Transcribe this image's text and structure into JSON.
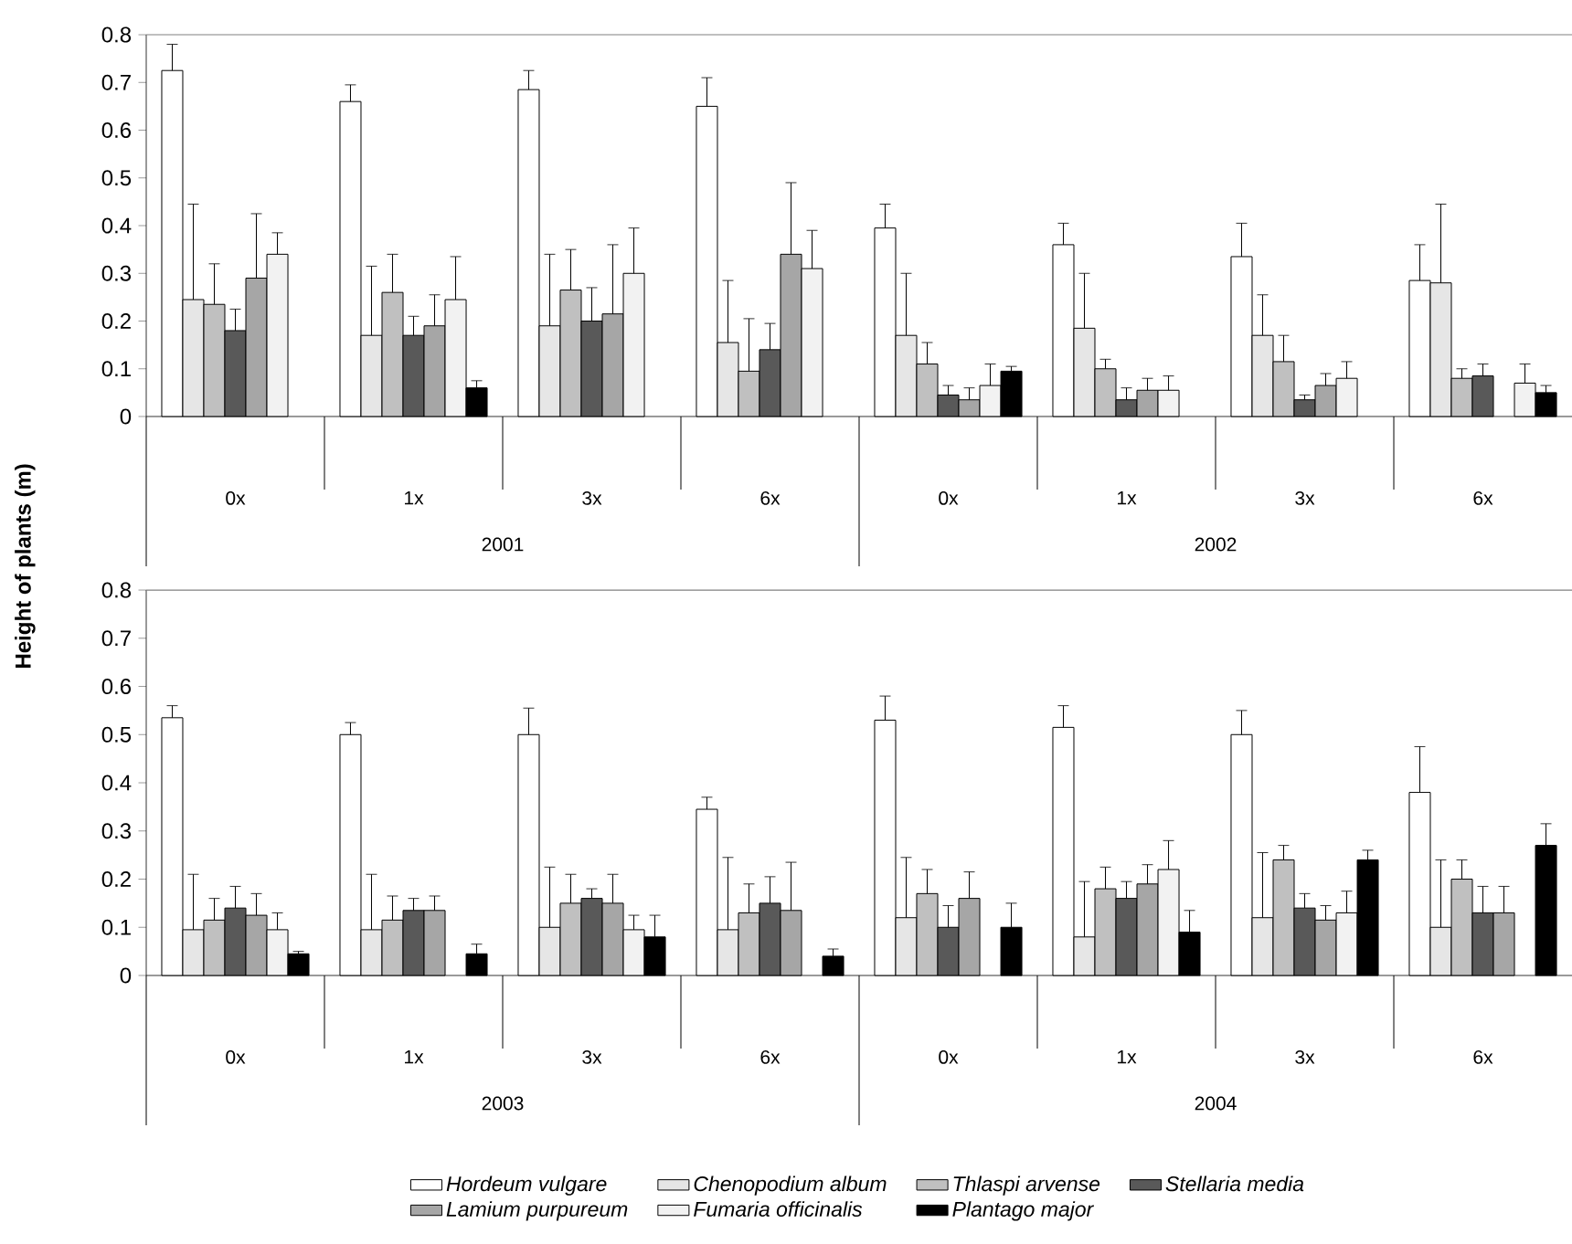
{
  "chart_data": [
    {
      "type": "bar",
      "ylabel": "Height of plants (m)",
      "categories": [
        "0x",
        "1x",
        "3x",
        "6x",
        "0x",
        "1x",
        "3x",
        "6x"
      ],
      "annotations": [
        "2001",
        "2002"
      ],
      "ylim": [
        0,
        0.8
      ],
      "yticks": [
        0,
        0.1,
        0.2,
        0.3,
        0.4,
        0.5,
        0.6,
        0.7,
        0.8
      ],
      "series": [
        {
          "color": "#ffffff",
          "values": [
            0.725,
            0.66,
            0.685,
            0.65,
            0.395,
            0.36,
            0.335,
            0.285
          ],
          "errors": [
            [
              0.725,
              0.78
            ],
            [
              0.66,
              0.695
            ],
            [
              0.685,
              0.725
            ],
            [
              0.65,
              0.71
            ],
            [
              0.395,
              0.445
            ],
            [
              0.36,
              0.405
            ],
            [
              0.335,
              0.405
            ],
            [
              0.285,
              0.36
            ]
          ]
        },
        {
          "color": "#e6e6e6",
          "values": [
            0.245,
            0.17,
            0.19,
            0.155,
            0.17,
            0.185,
            0.17,
            0.28
          ],
          "errors": [
            [
              0.245,
              0.445
            ],
            [
              0.17,
              0.315
            ],
            [
              0.19,
              0.34
            ],
            [
              0.155,
              0.285
            ],
            [
              0.17,
              0.3
            ],
            [
              0.185,
              0.3
            ],
            [
              0.17,
              0.255
            ],
            [
              0.28,
              0.445
            ]
          ]
        },
        {
          "color": "#c0c0c0",
          "values": [
            0.235,
            0.26,
            0.265,
            0.095,
            0.11,
            0.1,
            0.115,
            0.08
          ],
          "errors": [
            [
              0.235,
              0.32
            ],
            [
              0.26,
              0.34
            ],
            [
              0.265,
              0.35
            ],
            [
              0.095,
              0.205
            ],
            [
              0.11,
              0.155
            ],
            [
              0.1,
              0.12
            ],
            [
              0.115,
              0.17
            ],
            [
              0.08,
              0.1
            ]
          ]
        },
        {
          "color": "#595959",
          "values": [
            0.18,
            0.17,
            0.2,
            0.14,
            0.045,
            0.035,
            0.035,
            0.085
          ],
          "errors": [
            [
              0.18,
              0.225
            ],
            [
              0.17,
              0.21
            ],
            [
              0.2,
              0.27
            ],
            [
              0.14,
              0.195
            ],
            [
              0.045,
              0.065
            ],
            [
              0.035,
              0.06
            ],
            [
              0.035,
              0.045
            ],
            [
              0.085,
              0.11
            ]
          ]
        },
        {
          "color": "#a6a6a6",
          "values": [
            0.29,
            0.19,
            0.215,
            0.34,
            0.035,
            0.055,
            0.065,
            null
          ],
          "errors": [
            [
              0.29,
              0.425
            ],
            [
              0.19,
              0.255
            ],
            [
              0.215,
              0.36
            ],
            [
              0.34,
              0.49
            ],
            [
              0.035,
              0.06
            ],
            [
              0.055,
              0.08
            ],
            [
              0.065,
              0.09
            ],
            null
          ]
        },
        {
          "color": "#f2f2f2",
          "values": [
            0.34,
            0.245,
            0.3,
            0.31,
            0.065,
            0.055,
            0.08,
            0.07
          ],
          "errors": [
            [
              0.34,
              0.385
            ],
            [
              0.245,
              0.335
            ],
            [
              0.3,
              0.395
            ],
            [
              0.31,
              0.39
            ],
            [
              0.065,
              0.11
            ],
            [
              0.055,
              0.085
            ],
            [
              0.08,
              0.115
            ],
            [
              0.07,
              0.11
            ]
          ]
        },
        {
          "color": "#000000",
          "values": [
            null,
            0.06,
            null,
            null,
            0.095,
            null,
            null,
            0.05
          ],
          "errors": [
            null,
            [
              0.06,
              0.075
            ],
            null,
            null,
            [
              0.095,
              0.105
            ],
            null,
            null,
            [
              0.05,
              0.065
            ]
          ]
        }
      ]
    },
    {
      "type": "bar",
      "categories": [
        "0x",
        "1x",
        "3x",
        "6x",
        "0x",
        "1x",
        "3x",
        "6x"
      ],
      "annotations": [
        "2003",
        "2004"
      ],
      "ylim": [
        0,
        0.8
      ],
      "yticks": [
        0,
        0.1,
        0.2,
        0.3,
        0.4,
        0.5,
        0.6,
        0.7,
        0.8
      ],
      "legend": "bottom",
      "series": [
        {
          "name": "Hordeum vulgare",
          "color": "#ffffff",
          "values": [
            0.535,
            0.5,
            0.5,
            0.345,
            0.53,
            0.515,
            0.5,
            0.38
          ],
          "errors": [
            [
              0.535,
              0.56
            ],
            [
              0.5,
              0.525
            ],
            [
              0.5,
              0.555
            ],
            [
              0.345,
              0.37
            ],
            [
              0.53,
              0.58
            ],
            [
              0.515,
              0.56
            ],
            [
              0.5,
              0.55
            ],
            [
              0.38,
              0.475
            ]
          ]
        },
        {
          "name": "Chenopodium album",
          "color": "#e6e6e6",
          "values": [
            0.095,
            0.095,
            0.1,
            0.095,
            0.12,
            0.08,
            0.12,
            0.1
          ],
          "errors": [
            [
              0.095,
              0.21
            ],
            [
              0.095,
              0.21
            ],
            [
              0.1,
              0.225
            ],
            [
              0.095,
              0.245
            ],
            [
              0.12,
              0.245
            ],
            [
              0.08,
              0.195
            ],
            [
              0.12,
              0.255
            ],
            [
              0.1,
              0.24
            ]
          ]
        },
        {
          "name": "Thlaspi arvense",
          "color": "#c0c0c0",
          "values": [
            0.115,
            0.115,
            0.15,
            0.13,
            0.17,
            0.18,
            0.24,
            0.2
          ],
          "errors": [
            [
              0.115,
              0.16
            ],
            [
              0.115,
              0.165
            ],
            [
              0.15,
              0.21
            ],
            [
              0.13,
              0.19
            ],
            [
              0.17,
              0.22
            ],
            [
              0.18,
              0.225
            ],
            [
              0.24,
              0.27
            ],
            [
              0.2,
              0.24
            ]
          ]
        },
        {
          "name": "Stellaria media",
          "color": "#595959",
          "values": [
            0.14,
            0.135,
            0.16,
            0.15,
            0.1,
            0.16,
            0.14,
            0.13
          ],
          "errors": [
            [
              0.14,
              0.185
            ],
            [
              0.135,
              0.16
            ],
            [
              0.16,
              0.18
            ],
            [
              0.15,
              0.205
            ],
            [
              0.1,
              0.145
            ],
            [
              0.16,
              0.195
            ],
            [
              0.14,
              0.17
            ],
            [
              0.13,
              0.185
            ]
          ]
        },
        {
          "name": "Lamium purpureum",
          "color": "#a6a6a6",
          "values": [
            0.125,
            0.135,
            0.15,
            0.135,
            0.16,
            0.19,
            0.115,
            0.13
          ],
          "errors": [
            [
              0.125,
              0.17
            ],
            [
              0.135,
              0.165
            ],
            [
              0.15,
              0.21
            ],
            [
              0.135,
              0.235
            ],
            [
              0.16,
              0.215
            ],
            [
              0.19,
              0.23
            ],
            [
              0.115,
              0.145
            ],
            [
              0.13,
              0.185
            ]
          ]
        },
        {
          "name": "Fumaria officinalis",
          "color": "#f2f2f2",
          "values": [
            0.095,
            null,
            0.095,
            null,
            null,
            0.22,
            0.13,
            null
          ],
          "errors": [
            [
              0.095,
              0.13
            ],
            null,
            [
              0.095,
              0.125
            ],
            null,
            null,
            [
              0.22,
              0.28
            ],
            [
              0.13,
              0.175
            ],
            null
          ]
        },
        {
          "name": "Plantago major",
          "color": "#000000",
          "values": [
            0.045,
            0.045,
            0.08,
            0.04,
            0.1,
            0.09,
            0.24,
            0.27
          ],
          "errors": [
            [
              0.045,
              0.05
            ],
            [
              0.045,
              0.065
            ],
            [
              0.08,
              0.125
            ],
            [
              0.04,
              0.055
            ],
            [
              0.1,
              0.15
            ],
            [
              0.09,
              0.135
            ],
            [
              0.24,
              0.26
            ],
            [
              0.27,
              0.315
            ]
          ]
        }
      ]
    }
  ]
}
